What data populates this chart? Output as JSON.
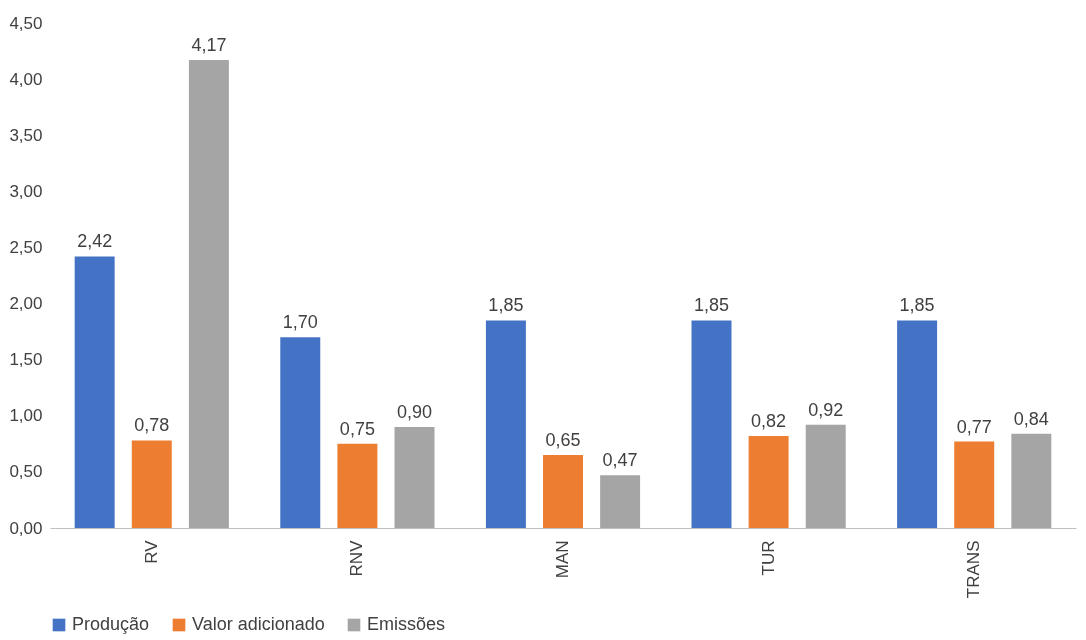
{
  "chart_data": {
    "type": "bar",
    "categories": [
      "RV",
      "RNV",
      "MAN",
      "TUR",
      "TRANS"
    ],
    "series": [
      {
        "name": "Produção",
        "color": "#4472c4",
        "values": [
          2.42,
          1.7,
          1.85,
          1.85,
          1.85
        ],
        "value_labels": [
          "2,42",
          "1,70",
          "1,85",
          "1,85",
          "1,85"
        ]
      },
      {
        "name": "Valor adicionado",
        "color": "#ed7d31",
        "values": [
          0.78,
          0.75,
          0.65,
          0.82,
          0.77
        ],
        "value_labels": [
          "0,78",
          "0,75",
          "0,65",
          "0,82",
          "0,77"
        ]
      },
      {
        "name": "Emissões",
        "color": "#a5a5a5",
        "values": [
          4.17,
          0.9,
          0.47,
          0.92,
          0.84
        ],
        "value_labels": [
          "4,17",
          "0,90",
          "0,47",
          "0,92",
          "0,84"
        ]
      }
    ],
    "ylim": [
      0,
      4.5
    ],
    "yticks": [
      {
        "value": 0,
        "label": "0,00"
      },
      {
        "value": 0.5,
        "label": "0,50"
      },
      {
        "value": 1,
        "label": "1,00"
      },
      {
        "value": 1.5,
        "label": "1,50"
      },
      {
        "value": 2,
        "label": "2,00"
      },
      {
        "value": 2.5,
        "label": "2,50"
      },
      {
        "value": 3,
        "label": "3,00"
      },
      {
        "value": 3.5,
        "label": "3,50"
      },
      {
        "value": 4,
        "label": "4,00"
      },
      {
        "value": 4.5,
        "label": "4,50"
      }
    ],
    "grid": false,
    "legend": "bottom"
  }
}
